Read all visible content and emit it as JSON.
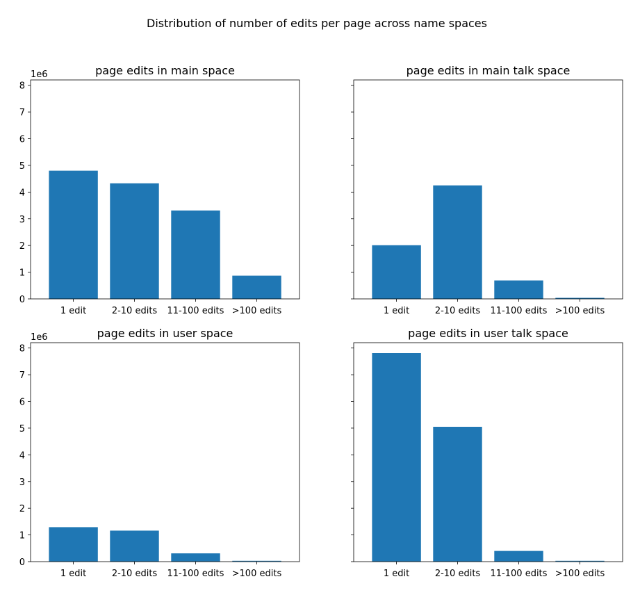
{
  "figure": {
    "suptitle": "Distribution of number of edits per page across name spaces",
    "bar_color": "#1f77b4",
    "y_multiplier_label": "1e6"
  },
  "chart_data": [
    {
      "type": "bar",
      "title": "page edits in main space",
      "categories": [
        "1 edit",
        "2-10 edits",
        "11-100 edits",
        ">100 edits"
      ],
      "values": [
        4800000,
        4330000,
        3310000,
        870000
      ],
      "ylim": [
        0,
        8200000
      ],
      "yticks": [
        0,
        1,
        2,
        3,
        4,
        5,
        6,
        7,
        8
      ],
      "ytick_labels_visible": true,
      "y_offset_label": "1e6"
    },
    {
      "type": "bar",
      "title": "page edits in main talk space",
      "categories": [
        "1 edit",
        "2-10 edits",
        "11-100 edits",
        ">100 edits"
      ],
      "values": [
        2010000,
        4250000,
        690000,
        40000
      ],
      "ylim": [
        0,
        8200000
      ],
      "yticks": [
        0,
        1,
        2,
        3,
        4,
        5,
        6,
        7,
        8
      ],
      "ytick_labels_visible": false,
      "y_offset_label": ""
    },
    {
      "type": "bar",
      "title": "page edits in user space",
      "categories": [
        "1 edit",
        "2-10 edits",
        "11-100 edits",
        ">100 edits"
      ],
      "values": [
        1290000,
        1160000,
        310000,
        30000
      ],
      "ylim": [
        0,
        8200000
      ],
      "yticks": [
        0,
        1,
        2,
        3,
        4,
        5,
        6,
        7,
        8
      ],
      "ytick_labels_visible": true,
      "y_offset_label": "1e6"
    },
    {
      "type": "bar",
      "title": "page edits in user talk space",
      "categories": [
        "1 edit",
        "2-10 edits",
        "11-100 edits",
        ">100 edits"
      ],
      "values": [
        7810000,
        5050000,
        400000,
        30000
      ],
      "ylim": [
        0,
        8200000
      ],
      "yticks": [
        0,
        1,
        2,
        3,
        4,
        5,
        6,
        7,
        8
      ],
      "ytick_labels_visible": false,
      "y_offset_label": ""
    }
  ]
}
